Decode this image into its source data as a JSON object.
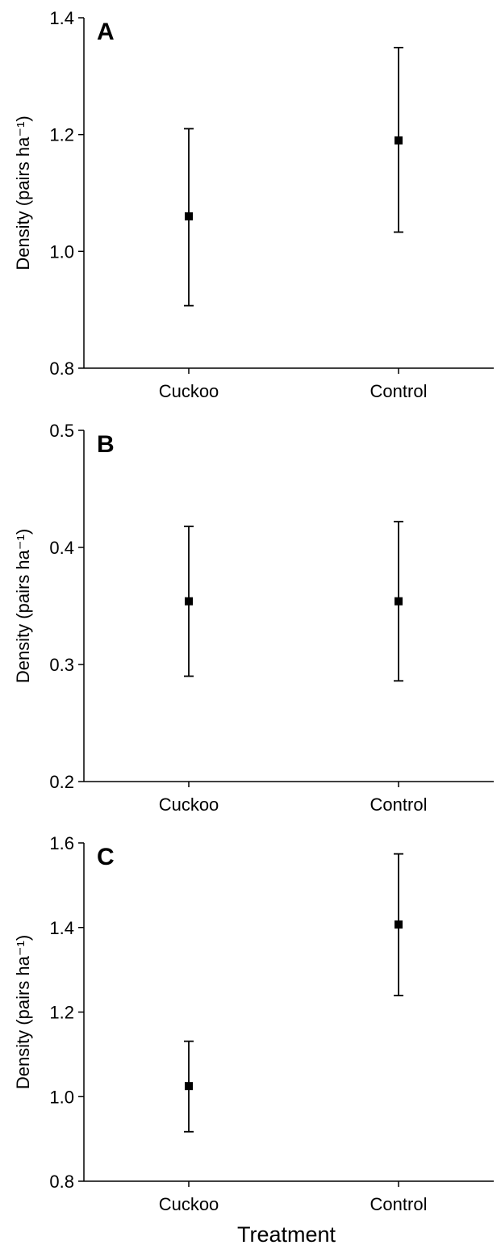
{
  "chart_data": [
    {
      "type": "scatter",
      "panel_label": "A",
      "categories": [
        "Cuckoo",
        "Control"
      ],
      "series": [
        {
          "points": [
            {
              "category": "Cuckoo",
              "mean": 1.06,
              "lower": 0.907,
              "upper": 1.21
            },
            {
              "category": "Control",
              "mean": 1.19,
              "lower": 1.033,
              "upper": 1.349
            }
          ]
        }
      ],
      "ylabel": "Density (pairs ha⁻¹)",
      "xlabel": "",
      "ylim": [
        0.8,
        1.4
      ],
      "yticks": [
        "0.8",
        "1.0",
        "1.2",
        "1.4"
      ],
      "grid": false,
      "error_bars": true
    },
    {
      "type": "scatter",
      "panel_label": "B",
      "categories": [
        "Cuckoo",
        "Control"
      ],
      "series": [
        {
          "points": [
            {
              "category": "Cuckoo",
              "mean": 0.354,
              "lower": 0.29,
              "upper": 0.418
            },
            {
              "category": "Control",
              "mean": 0.354,
              "lower": 0.286,
              "upper": 0.422
            }
          ]
        }
      ],
      "ylabel": "Density (pairs ha⁻¹)",
      "xlabel": "",
      "ylim": [
        0.2,
        0.5
      ],
      "yticks": [
        "0.2",
        "0.3",
        "0.4",
        "0.5"
      ],
      "grid": false,
      "error_bars": true
    },
    {
      "type": "scatter",
      "panel_label": "C",
      "categories": [
        "Cuckoo",
        "Control"
      ],
      "series": [
        {
          "points": [
            {
              "category": "Cuckoo",
              "mean": 1.025,
              "lower": 0.917,
              "upper": 1.131
            },
            {
              "category": "Control",
              "mean": 1.407,
              "lower": 1.239,
              "upper": 1.574
            }
          ]
        }
      ],
      "ylabel": "Density (pairs ha⁻¹)",
      "xlabel": "Treatment",
      "ylim": [
        0.8,
        1.6
      ],
      "yticks": [
        "0.8",
        "1.0",
        "1.2",
        "1.4",
        "1.6"
      ],
      "grid": false,
      "error_bars": true
    }
  ]
}
